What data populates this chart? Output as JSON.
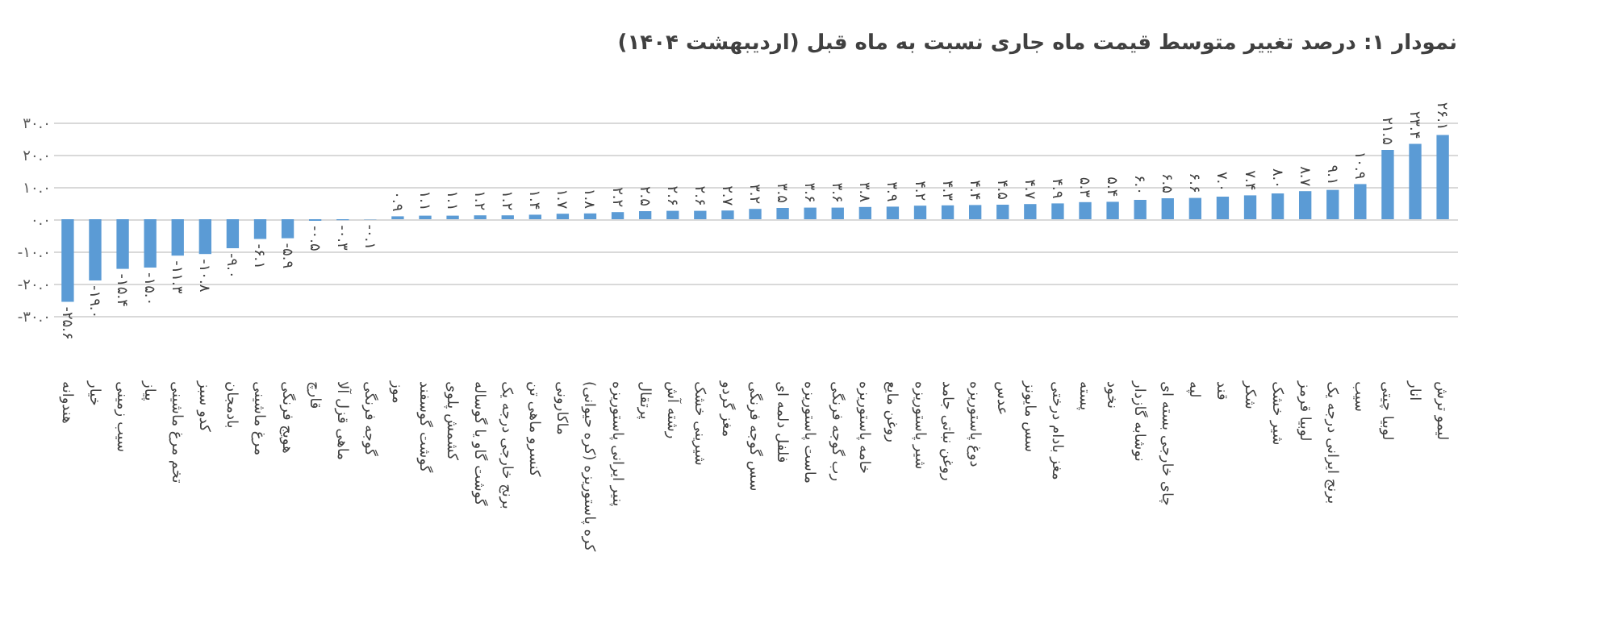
{
  "chart_data": {
    "type": "bar",
    "title": "نمودار ۱: درصد تغییر متوسط قیمت ماه جاری نسبت به ماه قبل (اردیبهشت ۱۴۰۴)",
    "categories": [
      "هندوانه",
      "خیار",
      "سیب زمینی",
      "پیاز",
      "تخم مرغ ماشینی",
      "کدو سبز",
      "بادمجان",
      "مرغ ماشینی",
      "هویج فرنگی",
      "قارچ",
      "ماهی قزل آلا",
      "گوجه فرنگی",
      "موز",
      "گوشت گوسفند",
      "کشمش پلوی",
      "گوشت گاو یا گوساله",
      "برنج خارجی درجه یک",
      "کنسرو ماهی تن",
      "ماکارونی",
      "کره پاستوریزه (کره حیوانی)",
      "پنیر ایرانی پاستوریزه",
      "پرتقال",
      "رشته آش",
      "شیرینی خشک",
      "مغز گردو",
      "سس گوجه فرنگی",
      "فلفل دلمه ای",
      "ماست پاستوریزه",
      "رب گوجه فرنگی",
      "خامه پاستوریزه",
      "روغن مایع",
      "شیر پاستوریزه",
      "روغن نباتی جامد",
      "دوغ پاستوریزه",
      "عدس",
      "سس مایونز",
      "مغز بادام درختی",
      "پسته",
      "نخود",
      "نوشابه گازدار",
      "چای خارجی بسته ای",
      "لپه",
      "قند",
      "شکر",
      "شیر خشک",
      "لوبیا قرمز",
      "برنج ایرانی درجه یک",
      "سیب",
      "لوبیا چیتی",
      "انار",
      "لیمو ترش"
    ],
    "values": [
      -25.6,
      -19.0,
      -15.4,
      -15.0,
      -11.3,
      -10.8,
      -9.0,
      -6.1,
      -5.9,
      -0.5,
      -0.3,
      -0.1,
      0.9,
      1.1,
      1.1,
      1.2,
      1.2,
      1.4,
      1.7,
      1.8,
      2.2,
      2.5,
      2.6,
      2.6,
      2.7,
      3.2,
      3.5,
      3.6,
      3.6,
      3.8,
      3.9,
      4.2,
      4.3,
      4.4,
      4.5,
      4.7,
      4.9,
      5.3,
      5.4,
      6.0,
      6.5,
      6.6,
      7.0,
      7.4,
      8.0,
      8.7,
      9.1,
      10.9,
      21.5,
      23.4,
      26.1
    ],
    "value_labels": [
      "-۲۵.۶",
      "-۱۹.۰",
      "-۱۵.۴",
      "-۱۵.۰",
      "-۱۱.۳",
      "-۱۰.۸",
      "-۹.۰",
      "-۶.۱",
      "-۵.۹",
      "-۰.۵",
      "-۰.۳",
      "-۰.۱",
      "۰.۹",
      "۱.۱",
      "۱.۱",
      "۱.۲",
      "۱.۲",
      "۱.۴",
      "۱.۷",
      "۱.۸",
      "۲.۲",
      "۲.۵",
      "۲.۶",
      "۲.۶",
      "۲.۷",
      "۳.۲",
      "۳.۵",
      "۳.۶",
      "۳.۶",
      "۳.۸",
      "۳.۹",
      "۴.۲",
      "۴.۳",
      "۴.۴",
      "۴.۵",
      "۴.۷",
      "۴.۹",
      "۵.۳",
      "۵.۴",
      "۶.۰",
      "۶.۵",
      "۶.۶",
      "۷.۰",
      "۷.۴",
      "۸.۰",
      "۸.۷",
      "۹.۱",
      "۱۰.۹",
      "۲۱.۵",
      "۲۳.۴",
      "۲۶.۱"
    ],
    "color": "#5b9bd5",
    "ylim": [
      -30,
      30
    ],
    "yticks": [
      {
        "value": -30,
        "label": "-۳۰.۰"
      },
      {
        "value": -20,
        "label": "-۲۰.۰"
      },
      {
        "value": -10,
        "label": "-۱۰.۰"
      },
      {
        "value": 0,
        "label": "۰.۰"
      },
      {
        "value": 10,
        "label": "۱۰.۰"
      },
      {
        "value": 20,
        "label": "۲۰.۰"
      },
      {
        "value": 30,
        "label": "۳۰.۰"
      }
    ],
    "grid": "y"
  }
}
